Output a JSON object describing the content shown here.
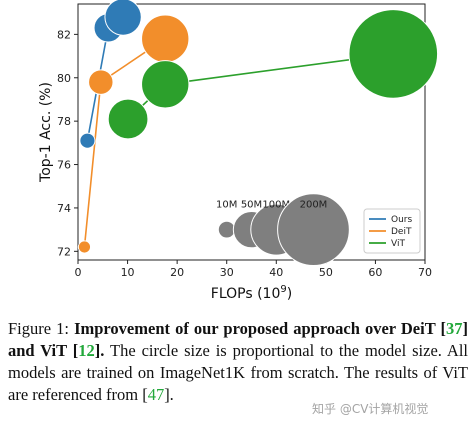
{
  "chart_data": {
    "type": "scatter",
    "xlabel": "FLOPs (10",
    "xlabel_sup": "9",
    "xlabel_end": ")",
    "ylabel": "Top-1 Acc. (%)",
    "xlim": [
      0,
      70
    ],
    "ylim": [
      71.6,
      83.4
    ],
    "x_ticks": [
      "0",
      "10",
      "20",
      "30",
      "40",
      "50",
      "60",
      "70"
    ],
    "y_ticks": [
      "72",
      "74",
      "76",
      "78",
      "80",
      "82"
    ],
    "grid": false,
    "legend_position": "bottom-right",
    "series": [
      {
        "name": "Ours",
        "color": "#2f7bb6",
        "points": [
          {
            "x": 1.9,
            "y": 77.1,
            "size_m": 8
          },
          {
            "x": 6.1,
            "y": 82.3,
            "size_m": 30
          },
          {
            "x": 9.1,
            "y": 82.8,
            "size_m": 50
          }
        ]
      },
      {
        "name": "DeiT",
        "color": "#f28e2b",
        "points": [
          {
            "x": 1.3,
            "y": 72.2,
            "size_m": 5
          },
          {
            "x": 4.6,
            "y": 79.8,
            "size_m": 22
          },
          {
            "x": 17.6,
            "y": 81.8,
            "size_m": 86
          }
        ]
      },
      {
        "name": "ViT",
        "color": "#2ca02c",
        "points": [
          {
            "x": 10.1,
            "y": 78.1,
            "size_m": 60
          },
          {
            "x": 17.6,
            "y": 79.7,
            "size_m": 86
          },
          {
            "x": 63.6,
            "y": 81.1,
            "size_m": 307
          }
        ]
      }
    ],
    "size_legend": [
      {
        "label": "10M",
        "size_m": 10
      },
      {
        "label": "50M",
        "size_m": 50
      },
      {
        "label": "100M",
        "size_m": 100
      },
      {
        "label": "200M",
        "size_m": 200
      }
    ],
    "size_legend_color": "#7f7f7f"
  },
  "caption": {
    "p1": "Figure 1: ",
    "bold1": "Improvement of our proposed approach over DeiT [",
    "ref1": "37",
    "bold2": "] and ViT [",
    "ref2": "12",
    "bold3": "].",
    "p2": " The circle size is proportional to the model size. All models are trained on ImageNet1K from scratch. The results of ViT are referenced from [",
    "ref3": "47",
    "p3": "]."
  },
  "watermark": "知乎 @CV计算机视觉"
}
